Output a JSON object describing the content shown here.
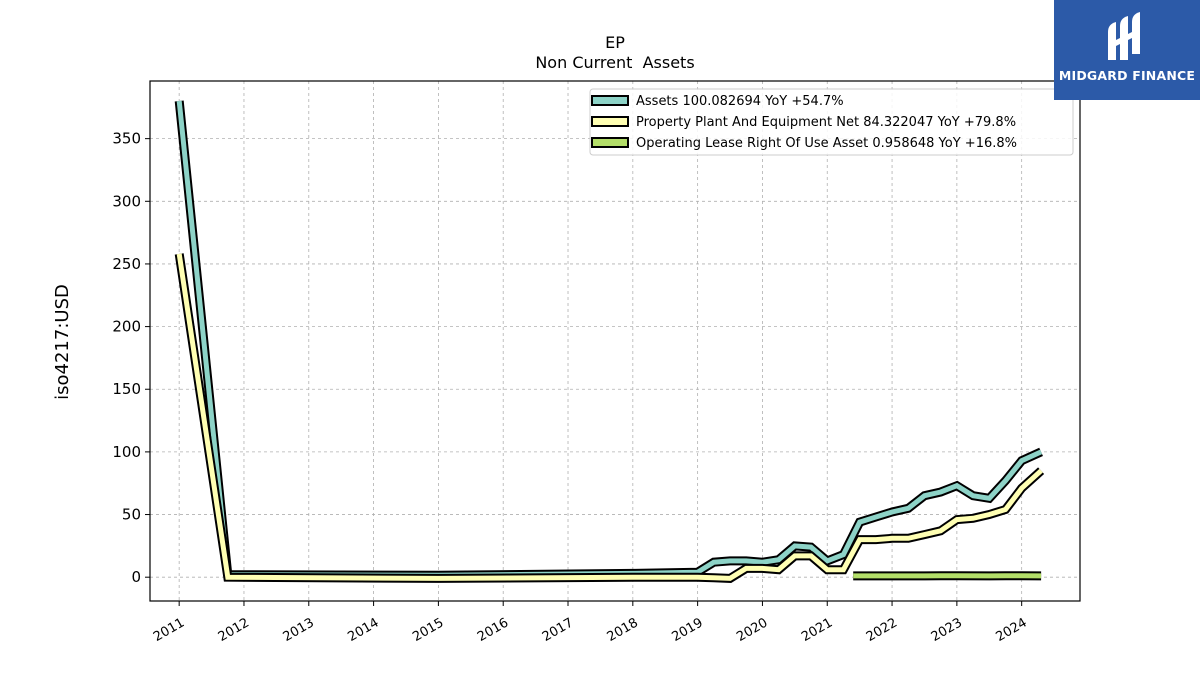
{
  "logo": {
    "text": "MIDGARD FINANCE",
    "color": "#2c5aa8"
  },
  "chart_data": {
    "type": "line",
    "title": "EP",
    "subtitle": "Non Current  Assets",
    "ylabel": "iso4217:USD",
    "xlabel": "",
    "xlim": [
      2010.55,
      2024.9
    ],
    "ylim": [
      -19,
      396
    ],
    "yticks": [
      0,
      50,
      100,
      150,
      200,
      250,
      300,
      350
    ],
    "xticks": [
      "2011",
      "2012",
      "2013",
      "2014",
      "2015",
      "2016",
      "2017",
      "2018",
      "2019",
      "2020",
      "2021",
      "2022",
      "2023",
      "2024"
    ],
    "grid": true,
    "legend_position": "top-right",
    "series": [
      {
        "name": "Assets",
        "legend": "Assets  100.082694 YoY +54.7%",
        "color": "#8dd3c7",
        "points": [
          [
            2011.0,
            380
          ],
          [
            2011.75,
            2
          ],
          [
            2015.0,
            1.5
          ],
          [
            2018.0,
            3
          ],
          [
            2019.0,
            4
          ],
          [
            2019.25,
            12
          ],
          [
            2019.5,
            13
          ],
          [
            2019.75,
            13
          ],
          [
            2020.0,
            12
          ],
          [
            2020.25,
            14
          ],
          [
            2020.5,
            25
          ],
          [
            2020.75,
            24
          ],
          [
            2021.0,
            13
          ],
          [
            2021.25,
            18
          ],
          [
            2021.5,
            44
          ],
          [
            2021.75,
            48
          ],
          [
            2022.0,
            52
          ],
          [
            2022.25,
            55
          ],
          [
            2022.5,
            65
          ],
          [
            2022.75,
            68
          ],
          [
            2023.0,
            73
          ],
          [
            2023.25,
            65
          ],
          [
            2023.5,
            63
          ],
          [
            2023.75,
            77
          ],
          [
            2024.0,
            93
          ],
          [
            2024.3,
            100
          ]
        ]
      },
      {
        "name": "Property Plant And Equipment Net",
        "legend": "Property Plant And Equipment Net  84.322047 YoY +79.8%",
        "color": "#ffffb3",
        "points": [
          [
            2011.0,
            258
          ],
          [
            2011.75,
            0
          ],
          [
            2015.0,
            -1
          ],
          [
            2018.0,
            0
          ],
          [
            2019.0,
            0
          ],
          [
            2019.25,
            -0.5
          ],
          [
            2019.5,
            -1
          ],
          [
            2019.75,
            7
          ],
          [
            2020.0,
            7
          ],
          [
            2020.25,
            6
          ],
          [
            2020.5,
            17
          ],
          [
            2020.75,
            17
          ],
          [
            2021.0,
            6
          ],
          [
            2021.25,
            6
          ],
          [
            2021.5,
            30
          ],
          [
            2021.75,
            30
          ],
          [
            2022.0,
            31
          ],
          [
            2022.25,
            31
          ],
          [
            2022.5,
            34
          ],
          [
            2022.75,
            37
          ],
          [
            2023.0,
            46
          ],
          [
            2023.25,
            47
          ],
          [
            2023.5,
            50
          ],
          [
            2023.75,
            54
          ],
          [
            2024.0,
            71
          ],
          [
            2024.3,
            85
          ]
        ]
      },
      {
        "name": "Operating Lease Right Of Use Asset",
        "legend": "Operating Lease Right Of Use Asset  0.958648 YoY +16.8%",
        "color": "#b3de69",
        "points": [
          [
            2021.4,
            1.0
          ],
          [
            2022.0,
            1.0
          ],
          [
            2022.5,
            1.0
          ],
          [
            2022.75,
            1.2
          ],
          [
            2023.0,
            1.1
          ],
          [
            2023.5,
            1.0
          ],
          [
            2023.75,
            1.2
          ],
          [
            2024.0,
            1.1
          ],
          [
            2024.3,
            1.0
          ]
        ]
      }
    ]
  }
}
